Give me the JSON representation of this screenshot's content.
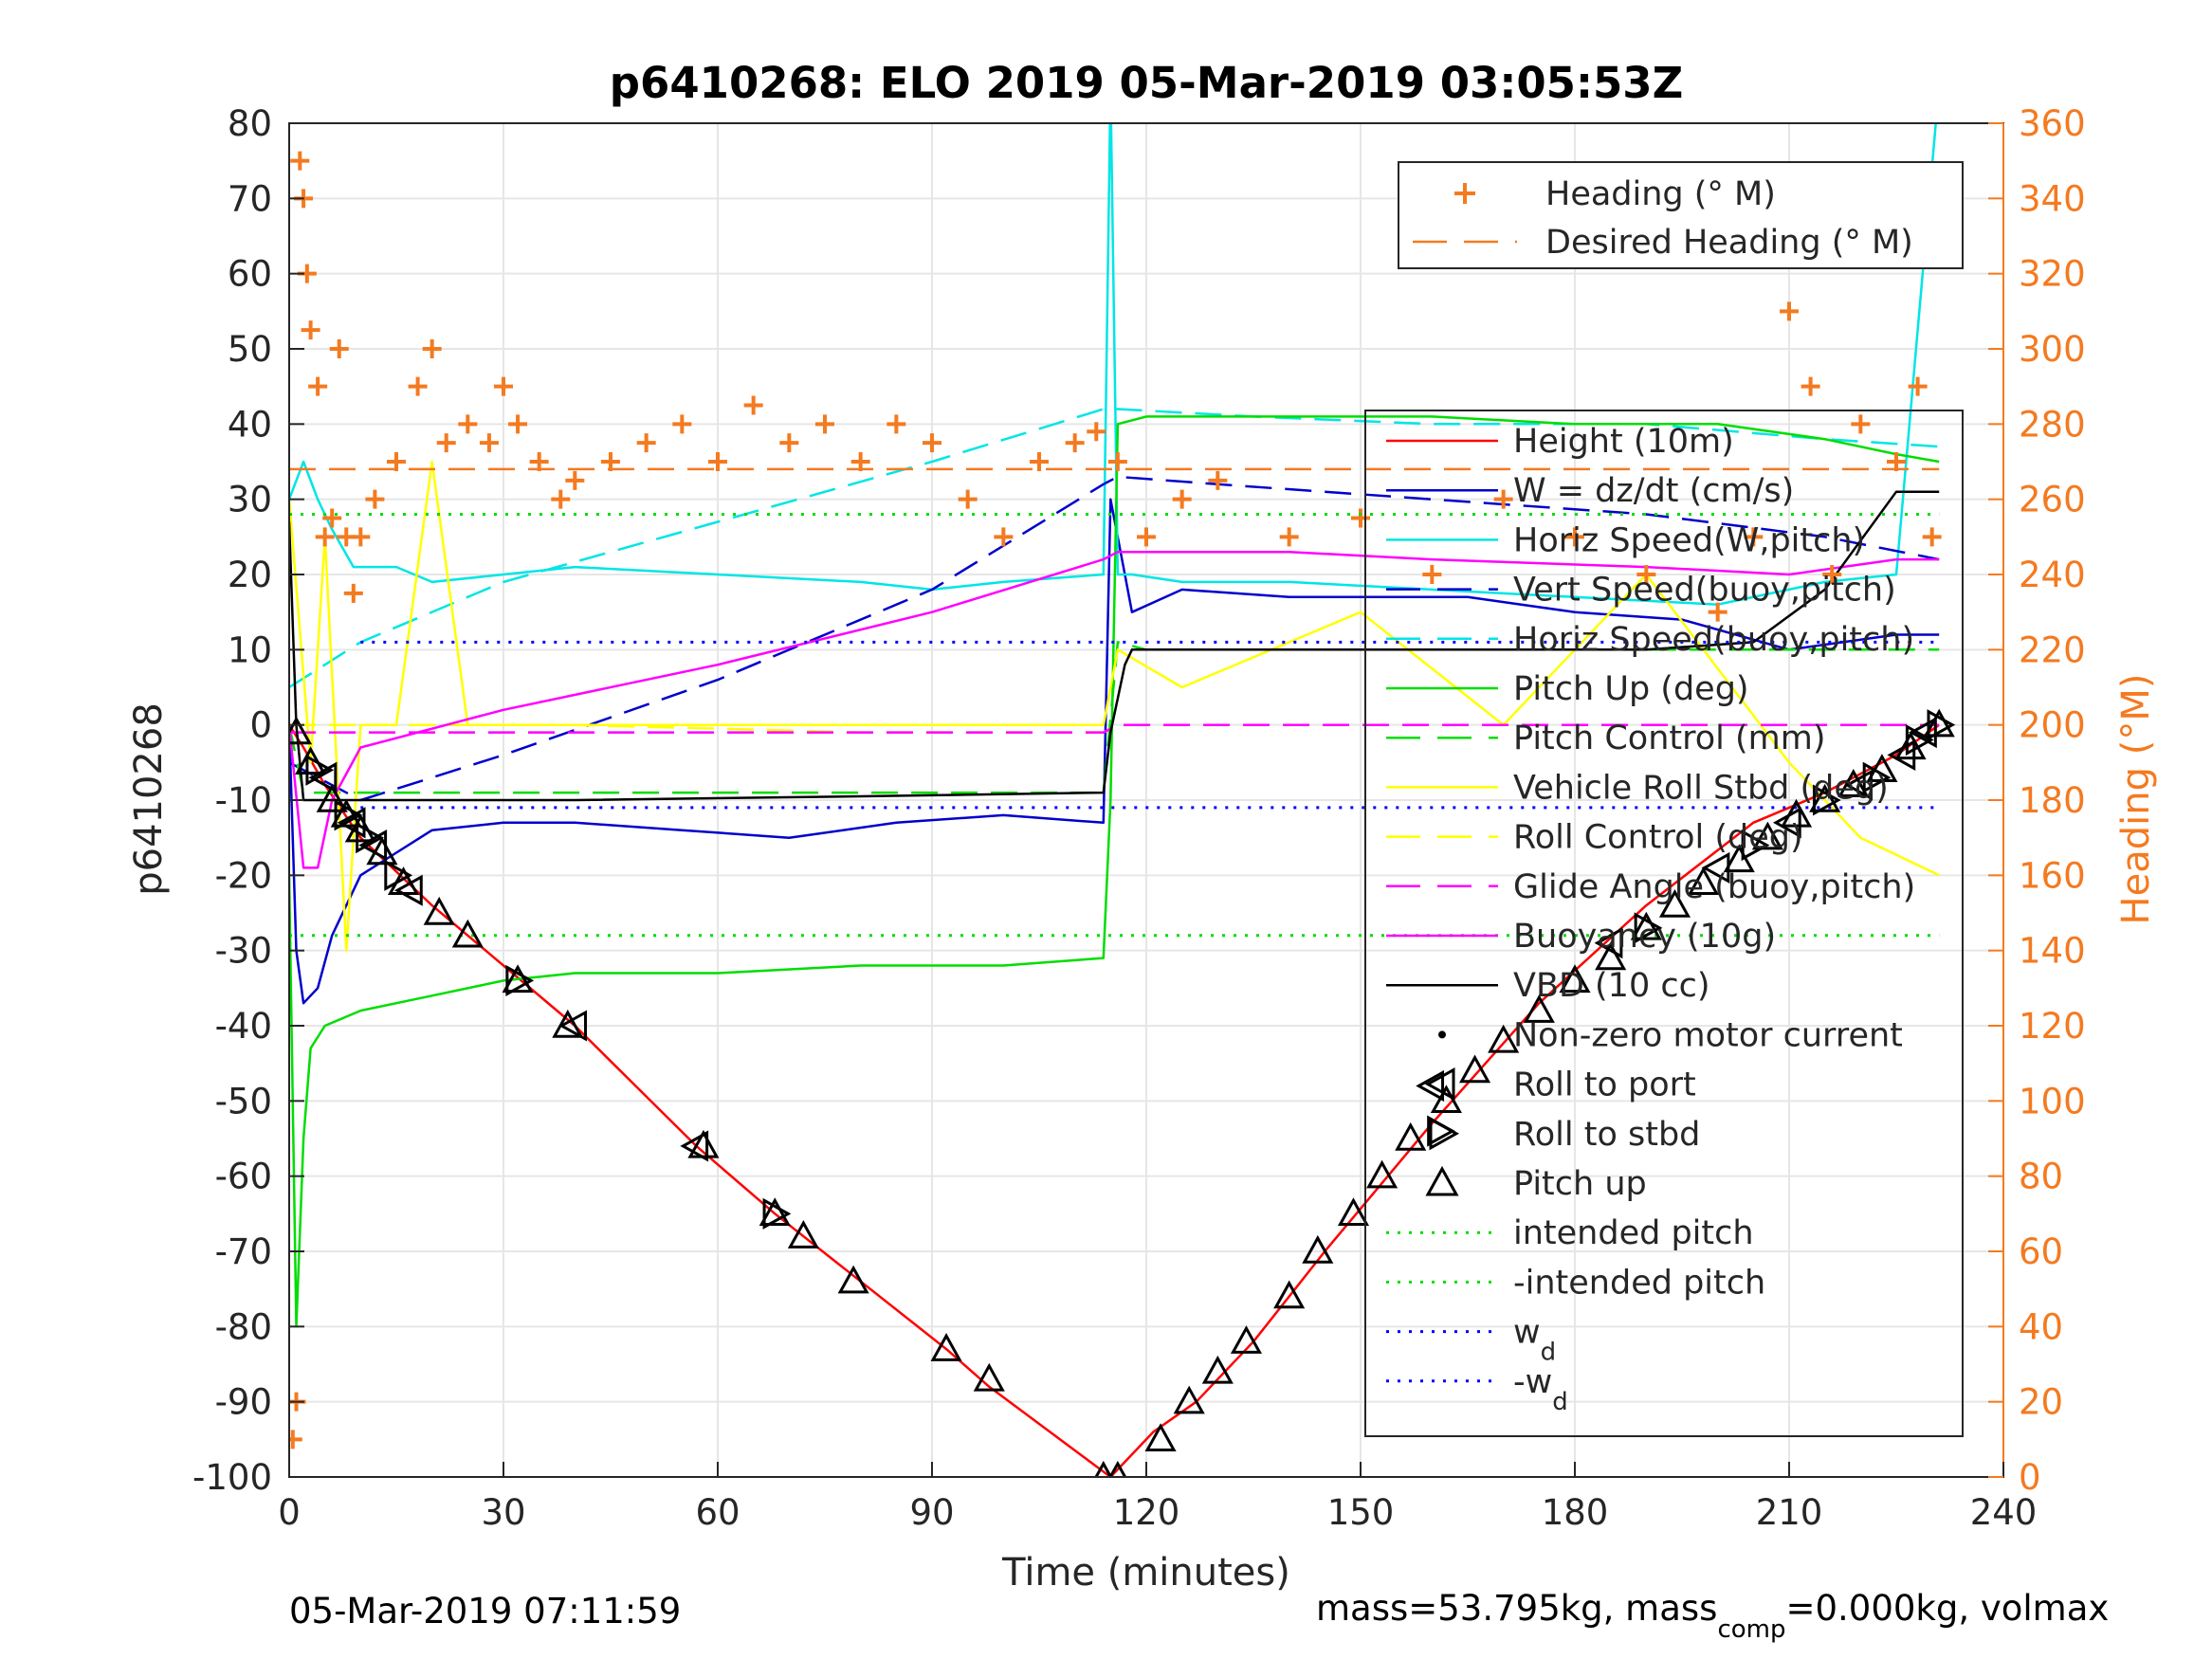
{
  "chart_data": {
    "type": "line",
    "title": "p6410268: ELO 2019 05-Mar-2019 03:05:53Z",
    "xlabel": "Time (minutes)",
    "ylabel": "p6410268",
    "y2label": "Heading (°M)",
    "xlim": [
      0,
      240
    ],
    "ylim": [
      -100,
      80
    ],
    "y2lim": [
      0,
      360
    ],
    "xticks": [
      "0",
      "30",
      "60",
      "90",
      "120",
      "150",
      "180",
      "210",
      "240"
    ],
    "yticks": [
      "80",
      "70",
      "60",
      "50",
      "40",
      "30",
      "20",
      "10",
      "0",
      "-10",
      "-20",
      "-30",
      "-40",
      "-50",
      "-60",
      "-70",
      "-80",
      "-90",
      "-100"
    ],
    "y2ticks": [
      "360",
      "340",
      "320",
      "300",
      "280",
      "260",
      "240",
      "220",
      "200",
      "180",
      "160",
      "140",
      "120",
      "100",
      "80",
      "60",
      "40",
      "20",
      "0"
    ],
    "grid": true,
    "footer_left": "05-Mar-2019 07:11:59",
    "footer_right": {
      "pre": "mass=53.795kg, mass",
      "sub": "comp",
      "post": "=0.000kg, volmax"
    },
    "legend_top": [
      {
        "label": "Heading (° M)",
        "color": "#f47a20",
        "marker": "plus"
      },
      {
        "label": "Desired Heading (° M)",
        "color": "#f47a20",
        "dash": "long"
      }
    ],
    "legend_main": [
      {
        "label": "Height (10m)",
        "color": "#ff0000",
        "dash": "solid"
      },
      {
        "label": "W = dz/dt (cm/s)",
        "color": "#0000cc",
        "dash": "solid"
      },
      {
        "label": "Horiz Speed(W,pitch)",
        "color": "#00e5e5",
        "dash": "solid"
      },
      {
        "label": "Vert Speed(buoy,pitch)",
        "color": "#0000cc",
        "dash": "long"
      },
      {
        "label": "Horiz Speed(buoy,pitch)",
        "color": "#00e5e5",
        "dash": "long"
      },
      {
        "label": "Pitch Up (deg)",
        "color": "#00dd00",
        "dash": "solid"
      },
      {
        "label": "Pitch Control (mm)",
        "color": "#00dd00",
        "dash": "long"
      },
      {
        "label": "Vehicle Roll Stbd (deg)",
        "color": "#ffff00",
        "dash": "solid"
      },
      {
        "label": "Roll Control (deg)",
        "color": "#ffff00",
        "dash": "long"
      },
      {
        "label": "Glide Angle (buoy,pitch)",
        "color": "#ff00ff",
        "dash": "long"
      },
      {
        "label": "Buoyancy (10g)",
        "color": "#ff00ff",
        "dash": "solid"
      },
      {
        "label": "VBD (10 cc)",
        "color": "#000000",
        "dash": "solid"
      },
      {
        "label": "Non-zero motor current",
        "color": "#000000",
        "marker": "dot"
      },
      {
        "label": "Roll to port",
        "color": "#000000",
        "marker": "tri-left"
      },
      {
        "label": "Roll to stbd",
        "color": "#000000",
        "marker": "tri-right"
      },
      {
        "label": "Pitch up",
        "color": "#000000",
        "marker": "tri-up"
      },
      {
        "label": "intended pitch",
        "color": "#00dd00",
        "dash": "dot"
      },
      {
        "label": "-intended pitch",
        "color": "#00dd00",
        "dash": "dot"
      },
      {
        "label": "w",
        "sub": "d",
        "color": "#0000ff",
        "dash": "dot"
      },
      {
        "label": "-w",
        "sub": "d",
        "color": "#0000ff",
        "dash": "dot"
      }
    ],
    "series": [
      {
        "name": "Height (10m)",
        "color": "#ff0000",
        "x": [
          0,
          2,
          5,
          10,
          20,
          30,
          40,
          57,
          68,
          80,
          92,
          98,
          115,
          121,
          127,
          135,
          145,
          160,
          175,
          190,
          205,
          215,
          225,
          231
        ],
        "y": [
          0,
          -3,
          -8,
          -15,
          -24,
          -32,
          -40,
          -56,
          -65,
          -74,
          -83,
          -88,
          -100,
          -94,
          -90,
          -82,
          -70,
          -53,
          -37,
          -24,
          -13,
          -9,
          -4,
          0
        ]
      },
      {
        "name": "W = dz/dt (cm/s)",
        "color": "#0000cc",
        "x": [
          0,
          1,
          2,
          4,
          6,
          10,
          15,
          20,
          30,
          40,
          55,
          70,
          85,
          100,
          114,
          115,
          117,
          118,
          125,
          140,
          150,
          165,
          180,
          195,
          210,
          225,
          231
        ],
        "y": [
          0,
          -30,
          -37,
          -35,
          -28,
          -20,
          -17,
          -14,
          -13,
          -13,
          -14,
          -15,
          -13,
          -12,
          -13,
          30,
          20,
          15,
          18,
          17,
          17,
          17,
          15,
          14,
          10,
          12,
          12
        ]
      },
      {
        "name": "Horiz Speed(W,pitch)",
        "color": "#00e5e5",
        "x": [
          0,
          2,
          4,
          6,
          9,
          15,
          20,
          30,
          40,
          60,
          80,
          90,
          100,
          114,
          115,
          116,
          118,
          125,
          140,
          160,
          180,
          200,
          215,
          225,
          231
        ],
        "y": [
          30,
          35,
          30,
          26,
          21,
          21,
          19,
          20,
          21,
          20,
          19,
          18,
          19,
          20,
          85,
          20,
          20,
          19,
          19,
          18,
          17,
          16,
          19,
          20,
          85
        ]
      },
      {
        "name": "Vert Speed(buoy,pitch)",
        "color": "#0000cc",
        "dash": "long",
        "x": [
          0,
          10,
          30,
          60,
          90,
          114,
          116,
          130,
          160,
          190,
          215,
          231
        ],
        "y": [
          -5,
          -10,
          -4,
          6,
          18,
          32,
          33,
          32,
          30,
          28,
          25,
          22
        ]
      },
      {
        "name": "Horiz Speed(buoy,pitch)",
        "color": "#00e5e5",
        "dash": "long",
        "x": [
          0,
          10,
          30,
          60,
          90,
          114,
          116,
          135,
          160,
          190,
          215,
          231
        ],
        "y": [
          5,
          11,
          19,
          27,
          35,
          42,
          42,
          41,
          40,
          40,
          38,
          37
        ]
      },
      {
        "name": "Pitch Up (deg)",
        "color": "#00dd00",
        "x": [
          0,
          1,
          2,
          3,
          5,
          10,
          15,
          20,
          30,
          40,
          60,
          80,
          100,
          114,
          115,
          116,
          120,
          140,
          160,
          180,
          200,
          215,
          225,
          231
        ],
        "y": [
          -20,
          -80,
          -55,
          -43,
          -40,
          -38,
          -37,
          -36,
          -34,
          -33,
          -33,
          -32,
          -32,
          -31,
          -10,
          40,
          41,
          41,
          41,
          40,
          40,
          38,
          36,
          35
        ]
      },
      {
        "name": "Pitch Control (mm)",
        "color": "#00dd00",
        "dash": "long",
        "x": [
          0,
          2,
          5,
          10,
          30,
          60,
          90,
          114,
          116,
          120,
          160,
          200,
          231
        ],
        "y": [
          0,
          -9,
          -9,
          -9,
          -9,
          -9,
          -9,
          -9,
          11,
          10,
          10,
          10,
          10
        ]
      },
      {
        "name": "Vehicle Roll Stbd (deg)",
        "color": "#ffff00",
        "x": [
          0,
          3,
          5,
          8,
          10,
          15,
          20,
          25,
          30,
          40,
          60,
          80,
          90,
          100,
          114,
          116,
          125,
          150,
          170,
          190,
          210,
          220,
          231
        ],
        "y": [
          30,
          -5,
          25,
          -30,
          0,
          0,
          35,
          0,
          0,
          0,
          0,
          0,
          0,
          0,
          0,
          10,
          5,
          15,
          0,
          20,
          -5,
          -15,
          -20
        ]
      },
      {
        "name": "Roll Control (deg)",
        "color": "#ffff00",
        "dash": "long",
        "x": [
          0,
          40,
          80,
          114,
          116,
          160,
          200,
          231
        ],
        "y": [
          0,
          0,
          -1,
          -1,
          0,
          0,
          0,
          0
        ]
      },
      {
        "name": "Glide Angle (buoy,pitch)",
        "color": "#ff00ff",
        "dash": "long",
        "x": [
          0,
          114,
          116,
          231
        ],
        "y": [
          -1,
          -1,
          0,
          0
        ]
      },
      {
        "name": "Buoyancy (10g)",
        "color": "#ff00ff",
        "x": [
          0,
          2,
          4,
          6,
          10,
          30,
          60,
          90,
          114,
          116,
          140,
          160,
          190,
          210,
          225,
          231
        ],
        "y": [
          0,
          -19,
          -19,
          -10,
          -3,
          2,
          8,
          15,
          22,
          23,
          23,
          22,
          21,
          20,
          22,
          22
        ]
      },
      {
        "name": "VBD (10 cc)",
        "color": "#000000",
        "x": [
          0,
          1,
          2,
          10,
          40,
          80,
          114,
          115,
          117,
          118,
          150,
          190,
          205,
          215,
          225,
          231
        ],
        "y": [
          27,
          0,
          -10,
          -10,
          -10,
          -9.5,
          -9,
          -1,
          8,
          10,
          10,
          10,
          11,
          18,
          31,
          31
        ]
      },
      {
        "name": "Heading (° M)",
        "color": "#f47a20",
        "marker": "plus",
        "axis": "right",
        "x": [
          0.5,
          1,
          1.5,
          2,
          2.5,
          3,
          4,
          5,
          6,
          7,
          8,
          9,
          10,
          12,
          15,
          18,
          20,
          22,
          25,
          28,
          30,
          32,
          35,
          38,
          40,
          45,
          50,
          55,
          60,
          65,
          70,
          75,
          80,
          85,
          90,
          95,
          100,
          105,
          110,
          113,
          116,
          120,
          125,
          130,
          140,
          150,
          160,
          170,
          180,
          190,
          200,
          205,
          210,
          213,
          216,
          220,
          225,
          228,
          230
        ],
        "y": [
          10,
          20,
          350,
          340,
          320,
          305,
          290,
          250,
          255,
          300,
          250,
          235,
          250,
          260,
          270,
          290,
          300,
          275,
          280,
          275,
          290,
          280,
          270,
          260,
          265,
          270,
          275,
          280,
          270,
          285,
          275,
          280,
          270,
          280,
          275,
          260,
          250,
          270,
          275,
          278,
          270,
          250,
          260,
          265,
          250,
          255,
          240,
          260,
          250,
          240,
          230,
          250,
          310,
          290,
          240,
          280,
          270,
          290,
          250
        ]
      },
      {
        "name": "Desired Heading (° M)",
        "color": "#f47a20",
        "dash": "long",
        "axis": "right",
        "x": [
          0,
          231
        ],
        "y": [
          268,
          268
        ]
      },
      {
        "name": "intended pitch",
        "color": "#00dd00",
        "dash": "dot",
        "x": [
          0,
          231
        ],
        "y": [
          28,
          28
        ]
      },
      {
        "name": "-intended pitch",
        "color": "#00dd00",
        "dash": "dot",
        "x": [
          0,
          231
        ],
        "y": [
          -28,
          -28
        ]
      },
      {
        "name": "w_d",
        "color": "#0000ff",
        "dash": "dot",
        "x": [
          10,
          231
        ],
        "y": [
          11,
          11
        ]
      },
      {
        "name": "-w_d",
        "color": "#0000ff",
        "dash": "dot",
        "x": [
          10,
          231
        ],
        "y": [
          -11,
          -11
        ]
      }
    ],
    "markers": {
      "pitch_up": {
        "x": [
          1,
          3,
          6,
          8,
          10,
          13,
          16,
          21,
          25,
          32,
          39,
          58,
          68,
          72,
          79,
          92,
          98,
          114,
          116,
          122,
          126,
          130,
          134,
          140,
          144,
          149,
          153,
          157,
          162,
          166,
          170,
          175,
          180,
          185,
          190,
          194,
          198,
          203,
          207,
          211,
          215,
          219,
          223,
          227,
          231
        ],
        "y": [
          -1,
          -5,
          -10,
          -12,
          -14,
          -17,
          -21,
          -25,
          -28,
          -34,
          -40,
          -56,
          -65,
          -68,
          -74,
          -83,
          -87,
          -100,
          -100,
          -95,
          -90,
          -86,
          -82,
          -76,
          -70,
          -65,
          -60,
          -55,
          -50,
          -46,
          -42,
          -38,
          -34,
          -31,
          -27,
          -24,
          -21,
          -18,
          -15,
          -12,
          -10,
          -8,
          -6,
          -3,
          0
        ]
      },
      "roll_to_port": {
        "x": [
          5,
          9,
          12,
          17,
          40,
          57,
          160,
          185,
          200,
          210,
          220,
          226,
          229
        ],
        "y": [
          -7,
          -13,
          -16,
          -22,
          -40,
          -56,
          -48,
          -29,
          -19,
          -13,
          -8,
          -4,
          -1
        ]
      },
      "roll_to_stbd": {
        "x": [
          4,
          8,
          11,
          15,
          32,
          68,
          161,
          190,
          205,
          215,
          222,
          228,
          231
        ],
        "y": [
          -6,
          -12,
          -15,
          -20,
          -34,
          -65,
          -54,
          -27,
          -16,
          -10,
          -7,
          -2,
          0
        ]
      }
    }
  }
}
